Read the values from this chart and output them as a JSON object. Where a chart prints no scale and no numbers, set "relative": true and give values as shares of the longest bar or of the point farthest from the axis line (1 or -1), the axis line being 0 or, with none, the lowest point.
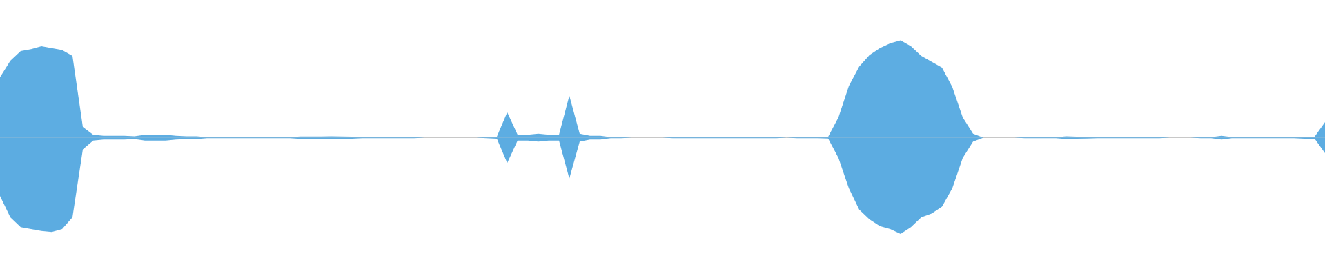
{
  "chart_data": {
    "type": "area",
    "relative": true,
    "categories": [
      null,
      null,
      null,
      null,
      null,
      null,
      null,
      null,
      null,
      null,
      null,
      null,
      null,
      null,
      null,
      null,
      null,
      null,
      null,
      null,
      null,
      null,
      null,
      null,
      null,
      null,
      null,
      null,
      null,
      null,
      null,
      null,
      null,
      null,
      null,
      null,
      null,
      null,
      null,
      null,
      null,
      null,
      null,
      null,
      null,
      null,
      null,
      null,
      null,
      null,
      null,
      null,
      null,
      null,
      null,
      null,
      null,
      null,
      null,
      null,
      null,
      null,
      null,
      null,
      null,
      null,
      null,
      null,
      null,
      null,
      null,
      null,
      null,
      null,
      null,
      null,
      null,
      null,
      null,
      null,
      null,
      null,
      null,
      null,
      null,
      null,
      null,
      null,
      null,
      null,
      null,
      null,
      null,
      null,
      null,
      null,
      null,
      null,
      null,
      null,
      null,
      null,
      null,
      null,
      null,
      null,
      null,
      null,
      null,
      null,
      null,
      null,
      null,
      null,
      null,
      null,
      null,
      null,
      null,
      null,
      null,
      null,
      null,
      null,
      null,
      null,
      null,
      null,
      null
    ],
    "series": [
      {
        "color": "#5dade2",
        "values": [
          0.62,
          0.79,
          0.89,
          0.91,
          0.94,
          0.92,
          0.9,
          0.84,
          0.11,
          0.03,
          0.02,
          0.02,
          0.02,
          0.015,
          0.03,
          0.03,
          0.03,
          0.02,
          0.015,
          0.015,
          0.005,
          0.005,
          0.005,
          0.005,
          0.005,
          0.005,
          0.005,
          0.005,
          0.005,
          0.012,
          0.012,
          0.012,
          0.015,
          0.012,
          0.01,
          0.005,
          0.005,
          0.005,
          0.005,
          0.005,
          0.005,
          0,
          0,
          0,
          0,
          0,
          0,
          0.005,
          0.01,
          0.26,
          0.03,
          0.03,
          0.04,
          0.03,
          0.03,
          0.43,
          0.04,
          0.02,
          0.02,
          0.005,
          0.005,
          0,
          0,
          0,
          0,
          0.005,
          0.005,
          0.005,
          0.005,
          0.005,
          0.005,
          0.005,
          0.005,
          0.005,
          0.005,
          0.005,
          0,
          0.005,
          0.005,
          0.005,
          0.008,
          0.21,
          0.53,
          0.73,
          0.85,
          0.92,
          0.97,
          1,
          0.94,
          0.84,
          0.78,
          0.72,
          0.52,
          0.21,
          0.04,
          0,
          0,
          0,
          0,
          0.005,
          0.005,
          0.005,
          0.005,
          0.015,
          0.01,
          0.008,
          0.005,
          0.005,
          0.005,
          0.005,
          0.005,
          0.005,
          0.005,
          0,
          0,
          0,
          0.005,
          0.005,
          0.02,
          0.005,
          0.005,
          0.005,
          0.005,
          0.005,
          0.005,
          0.005,
          0.01,
          0.01,
          0.16
        ]
      },
      {
        "color": "#5cace1",
        "values": [
          -0.6,
          -0.82,
          -0.92,
          -0.94,
          -0.96,
          -0.97,
          -0.94,
          -0.82,
          -0.12,
          -0.03,
          -0.02,
          -0.02,
          -0.02,
          -0.015,
          -0.03,
          -0.03,
          -0.03,
          -0.02,
          -0.015,
          -0.015,
          -0.005,
          -0.005,
          -0.005,
          -0.005,
          -0.005,
          -0.005,
          -0.005,
          -0.005,
          -0.005,
          -0.012,
          -0.012,
          -0.012,
          -0.015,
          -0.012,
          -0.01,
          -0.005,
          -0.005,
          -0.005,
          -0.005,
          -0.005,
          -0.005,
          0,
          0,
          0,
          0,
          0,
          0,
          -0.005,
          -0.01,
          -0.26,
          -0.03,
          -0.03,
          -0.04,
          -0.03,
          -0.03,
          -0.42,
          -0.04,
          -0.02,
          -0.02,
          -0.005,
          -0.005,
          0,
          0,
          0,
          0,
          -0.005,
          -0.005,
          -0.005,
          -0.005,
          -0.005,
          -0.005,
          -0.005,
          -0.005,
          -0.005,
          -0.005,
          -0.005,
          0,
          -0.005,
          -0.005,
          -0.005,
          -0.008,
          -0.21,
          -0.52,
          -0.74,
          -0.84,
          -0.91,
          -0.94,
          -0.99,
          -0.92,
          -0.82,
          -0.78,
          -0.71,
          -0.52,
          -0.21,
          -0.04,
          0,
          0,
          0,
          0,
          -0.005,
          -0.005,
          -0.005,
          -0.005,
          -0.015,
          -0.01,
          -0.008,
          -0.005,
          -0.005,
          -0.005,
          -0.005,
          -0.005,
          -0.005,
          -0.005,
          0,
          0,
          0,
          -0.005,
          -0.005,
          -0.02,
          -0.005,
          -0.005,
          -0.005,
          -0.005,
          -0.005,
          -0.005,
          -0.005,
          -0.01,
          -0.01,
          -0.16
        ]
      }
    ]
  }
}
